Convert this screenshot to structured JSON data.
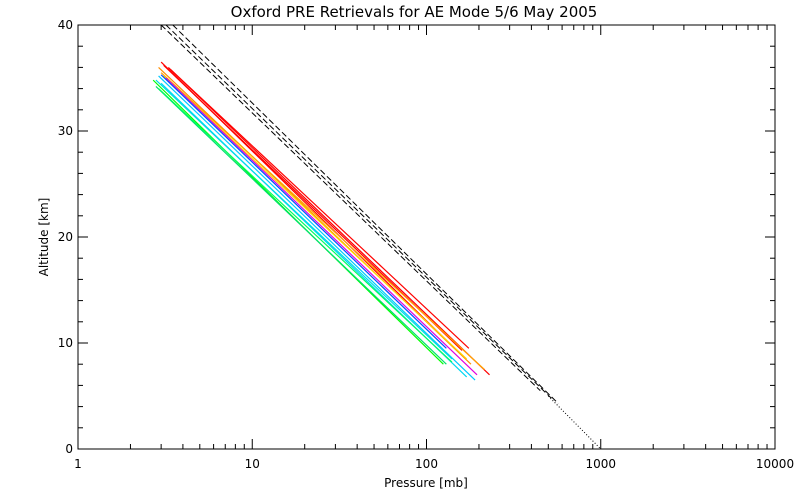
{
  "chart_data": {
    "type": "line",
    "title": "Oxford PRE Retrievals for AE Mode 5/6 May 2005",
    "xlabel": "Pressure [mb]",
    "ylabel": "Altitude [km]",
    "xscale": "log",
    "xlim": [
      1,
      10000
    ],
    "ylim": [
      0,
      40
    ],
    "xticks": [
      1,
      10,
      100,
      1000,
      10000
    ],
    "xtick_labels": [
      "1",
      "10",
      "100",
      "1000",
      "10000"
    ],
    "yticks": [
      0,
      10,
      20,
      30,
      40
    ],
    "ytick_labels": [
      "0",
      "10",
      "20",
      "30",
      "40"
    ],
    "reference_lines": [
      {
        "name": "reference-dashed-1",
        "style": "dashed",
        "color": "#000000",
        "x": [
          3.0,
          450
        ],
        "y": [
          40.0,
          5.5
        ]
      },
      {
        "name": "reference-dashed-2",
        "style": "dashed",
        "color": "#000000",
        "x": [
          3.2,
          520
        ],
        "y": [
          40.0,
          4.8
        ]
      },
      {
        "name": "reference-dashed-3",
        "style": "dashed",
        "color": "#000000",
        "x": [
          3.5,
          570
        ],
        "y": [
          40.0,
          4.3
        ]
      },
      {
        "name": "reference-dotted",
        "style": "dotted",
        "color": "#000000",
        "x": [
          500,
          1000
        ],
        "y": [
          5.0,
          0.0
        ]
      }
    ],
    "series": [
      {
        "name": "retrieval-red-1",
        "color": "#ff0000",
        "x": [
          3.0,
          145
        ],
        "y": [
          36.5,
          9.5
        ]
      },
      {
        "name": "retrieval-red-2",
        "color": "#ff0000",
        "x": [
          3.1,
          160
        ],
        "y": [
          36.2,
          9.3
        ]
      },
      {
        "name": "retrieval-red-3",
        "color": "#ff0000",
        "x": [
          3.3,
          230
        ],
        "y": [
          36.0,
          7.0
        ]
      },
      {
        "name": "retrieval-red-4",
        "color": "#ff0000",
        "x": [
          3.4,
          175
        ],
        "y": [
          35.8,
          9.5
        ]
      },
      {
        "name": "retrieval-orange-1",
        "color": "#ff8c00",
        "x": [
          2.9,
          180
        ],
        "y": [
          36.0,
          8.0
        ]
      },
      {
        "name": "retrieval-orange-2",
        "color": "#ffa500",
        "x": [
          3.0,
          215
        ],
        "y": [
          35.5,
          7.5
        ]
      },
      {
        "name": "retrieval-yellow",
        "color": "#ffd700",
        "x": [
          3.1,
          170
        ],
        "y": [
          35.2,
          8.5
        ]
      },
      {
        "name": "retrieval-magenta",
        "color": "#e000e0",
        "x": [
          3.2,
          195
        ],
        "y": [
          35.0,
          7.0
        ]
      },
      {
        "name": "retrieval-blue",
        "color": "#0050ff",
        "x": [
          3.0,
          130
        ],
        "y": [
          35.3,
          9.5
        ]
      },
      {
        "name": "retrieval-cyan-1",
        "color": "#00c8ff",
        "x": [
          2.9,
          190
        ],
        "y": [
          35.2,
          6.5
        ]
      },
      {
        "name": "retrieval-cyan-2",
        "color": "#00e0e0",
        "x": [
          2.8,
          140
        ],
        "y": [
          34.8,
          8.5
        ]
      },
      {
        "name": "retrieval-cyan-3",
        "color": "#00d8f0",
        "x": [
          3.0,
          170
        ],
        "y": [
          34.5,
          6.8
        ]
      },
      {
        "name": "retrieval-green-1",
        "color": "#00ff00",
        "x": [
          2.7,
          125
        ],
        "y": [
          34.8,
          8.0
        ]
      },
      {
        "name": "retrieval-green-2",
        "color": "#00e070",
        "x": [
          2.8,
          130
        ],
        "y": [
          34.2,
          8.0
        ]
      },
      {
        "name": "retrieval-green-3",
        "color": "#00ff60",
        "x": [
          2.9,
          140
        ],
        "y": [
          34.0,
          8.2
        ]
      }
    ]
  }
}
